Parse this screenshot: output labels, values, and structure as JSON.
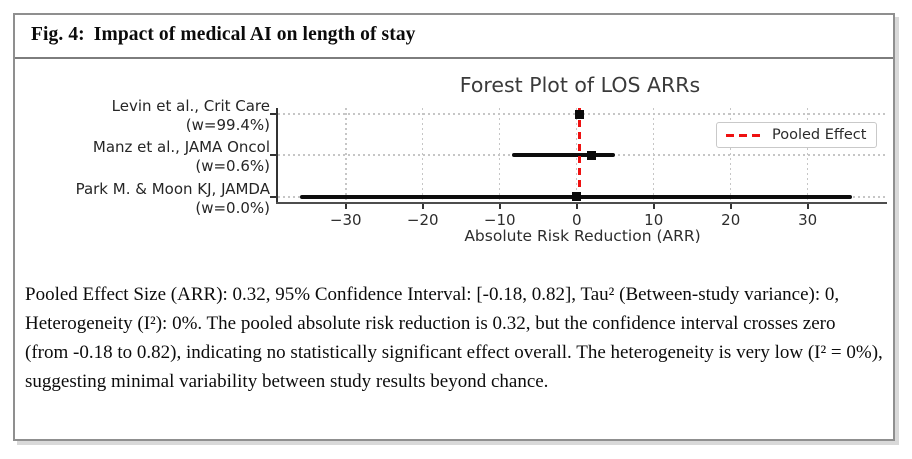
{
  "figure": {
    "caption_label": "Fig. 4:",
    "caption_text": "Impact of medical AI on length of stay"
  },
  "chart_data": {
    "type": "forest",
    "title": "Forest Plot of LOS ARRs",
    "xlabel": "Absolute Risk Reduction (ARR)",
    "x_ticks": [
      -30,
      -20,
      -10,
      0,
      10,
      20,
      30
    ],
    "x_tick_labels": [
      "−30",
      "−20",
      "−10",
      "0",
      "10",
      "20",
      "30"
    ],
    "xlim": [
      -38.8,
      40.3
    ],
    "grid": "dotted",
    "legend": {
      "label": "Pooled Effect",
      "position": "upper right",
      "style": "red dashed line"
    },
    "pooled": {
      "effect": 0.32,
      "ci": [
        -0.18,
        0.82
      ],
      "tau2": 0,
      "i2_percent": 0
    },
    "studies": [
      {
        "label": "Levin et al., Crit Care",
        "weight_label": "(w=99.4%)",
        "point": 0.32,
        "ci": [
          -0.18,
          0.82
        ]
      },
      {
        "label": "Manz et al., JAMA Oncol",
        "weight_label": "(w=0.6%)",
        "point": 1.9,
        "ci": [
          -8.4,
          5.0
        ]
      },
      {
        "label": "Park M. & Moon KJ, JAMDA",
        "weight_label": "(w=0.0%)",
        "point": 0.0,
        "ci": [
          -36.0,
          35.8
        ]
      }
    ]
  },
  "summary_text": "Pooled Effect Size (ARR): 0.32, 95% Confidence Interval: [-0.18, 0.82], Tau² (Between-study variance): 0, Heterogeneity (I²): 0%. The pooled absolute risk reduction is 0.32, but the confidence interval crosses zero (from -0.18 to 0.82), indicating no statistically significant effect overall. The heterogeneity is very low (I² = 0%), suggesting minimal variability between study results beyond chance.",
  "colors": {
    "pooled_line": "#ee1111",
    "marker": "#0a0a0a",
    "grid": "#c6c6c6",
    "frame_border": "#8f8f8f"
  }
}
